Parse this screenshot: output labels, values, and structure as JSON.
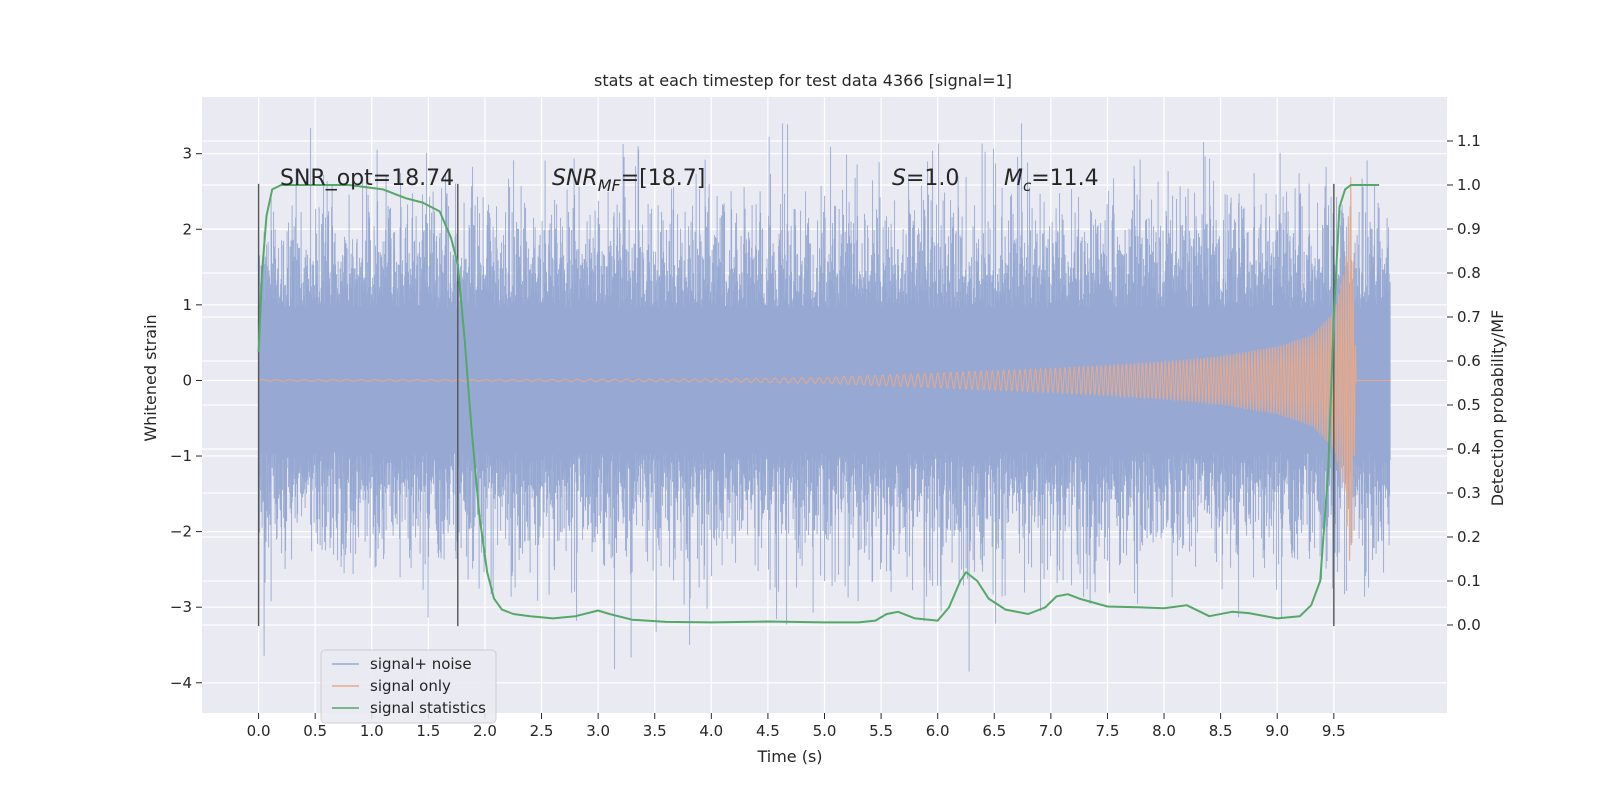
{
  "chart_data": {
    "type": "line",
    "title": "stats at each timestep for test data 4366 [signal=1]",
    "xlabel": "Time (s)",
    "ylabel": "Whitened strain",
    "y2label": "Detection probability/MF",
    "xlim": [
      -0.5,
      10.5
    ],
    "ylim": [
      -4.4,
      3.75
    ],
    "y2lim": [
      -0.2,
      1.2
    ],
    "xticks": [
      0.0,
      0.5,
      1.0,
      1.5,
      2.0,
      2.5,
      3.0,
      3.5,
      4.0,
      4.5,
      5.0,
      5.5,
      6.0,
      6.5,
      7.0,
      7.5,
      8.0,
      8.5,
      9.0,
      9.5
    ],
    "xtick_labels": [
      "0.0",
      "0.5",
      "1.0",
      "1.5",
      "2.0",
      "2.5",
      "3.0",
      "3.5",
      "4.0",
      "4.5",
      "5.0",
      "5.5",
      "6.0",
      "6.5",
      "7.0",
      "7.5",
      "8.0",
      "8.5",
      "9.0",
      "9.5"
    ],
    "yticks": [
      -4,
      -3,
      -2,
      -1,
      0,
      1,
      2,
      3
    ],
    "ytick_labels": [
      "−4",
      "−3",
      "−2",
      "−1",
      "0",
      "1",
      "2",
      "3"
    ],
    "y2ticks": [
      0.0,
      0.1,
      0.2,
      0.3,
      0.4,
      0.5,
      0.6,
      0.7,
      0.8,
      0.9,
      1.0,
      1.1
    ],
    "y2tick_labels": [
      "0.0",
      "0.1",
      "0.2",
      "0.3",
      "0.4",
      "0.5",
      "0.6",
      "0.7",
      "0.8",
      "0.9",
      "1.0",
      "1.1"
    ],
    "grid": true,
    "legend_position": "lower-left",
    "annotations": {
      "snr_opt": "SNR_opt=18.74",
      "snr_mf_main": "SNR",
      "snr_mf_sub": "MF",
      "snr_mf_value": "=[18.7]",
      "s_label": "S",
      "s_value": "=1.0",
      "mc_label": "M",
      "mc_sub": "c",
      "mc_value": "=11.4"
    },
    "vlines": [
      0.0,
      1.76,
      9.5
    ],
    "vline_range": [
      -3.25,
      2.6
    ],
    "series": [
      {
        "name": "signal+ noise",
        "color": "#97a9d2",
        "axis": "left",
        "duration": [
          0.0,
          10.0
        ],
        "envelope_typical": [
          -1.9,
          1.9
        ],
        "extremes": [
          -4.05,
          3.4
        ]
      },
      {
        "name": "signal only",
        "color": "#e5a98d",
        "axis": "left",
        "x": [
          0.0,
          2.0,
          4.0,
          5.0,
          5.5,
          6.0,
          6.5,
          7.0,
          7.5,
          8.0,
          8.5,
          9.0,
          9.3,
          9.5,
          9.6,
          9.65,
          9.7,
          10.0
        ],
        "amplitude": [
          0.01,
          0.01,
          0.02,
          0.04,
          0.07,
          0.1,
          0.13,
          0.16,
          0.2,
          0.25,
          0.32,
          0.45,
          0.6,
          0.9,
          1.5,
          2.7,
          0.0,
          0.0
        ]
      },
      {
        "name": "signal statistics",
        "color": "#55a868",
        "axis": "right",
        "x": [
          0.0,
          0.03,
          0.07,
          0.12,
          0.2,
          0.3,
          0.5,
          0.8,
          1.1,
          1.3,
          1.45,
          1.6,
          1.7,
          1.76,
          1.82,
          1.88,
          1.95,
          2.02,
          2.08,
          2.15,
          2.25,
          2.4,
          2.6,
          2.8,
          3.0,
          3.1,
          3.3,
          3.6,
          4.0,
          4.5,
          5.0,
          5.3,
          5.45,
          5.55,
          5.65,
          5.8,
          6.0,
          6.1,
          6.2,
          6.25,
          6.35,
          6.45,
          6.6,
          6.8,
          6.95,
          7.05,
          7.15,
          7.25,
          7.5,
          7.8,
          8.0,
          8.2,
          8.4,
          8.6,
          8.75,
          9.0,
          9.2,
          9.3,
          9.38,
          9.45,
          9.5,
          9.55,
          9.6,
          9.65,
          9.7,
          9.8,
          9.9
        ],
        "values": [
          0.62,
          0.8,
          0.93,
          0.99,
          1.0,
          1.0,
          1.0,
          1.0,
          0.99,
          0.97,
          0.96,
          0.94,
          0.88,
          0.82,
          0.65,
          0.45,
          0.25,
          0.12,
          0.06,
          0.035,
          0.025,
          0.02,
          0.015,
          0.02,
          0.033,
          0.025,
          0.012,
          0.007,
          0.006,
          0.008,
          0.006,
          0.006,
          0.01,
          0.025,
          0.03,
          0.015,
          0.01,
          0.04,
          0.1,
          0.12,
          0.1,
          0.06,
          0.035,
          0.025,
          0.04,
          0.065,
          0.07,
          0.06,
          0.042,
          0.04,
          0.038,
          0.045,
          0.02,
          0.03,
          0.027,
          0.015,
          0.02,
          0.045,
          0.1,
          0.35,
          0.7,
          0.95,
          0.99,
          1.0,
          1.0,
          1.0,
          1.0
        ]
      }
    ]
  }
}
